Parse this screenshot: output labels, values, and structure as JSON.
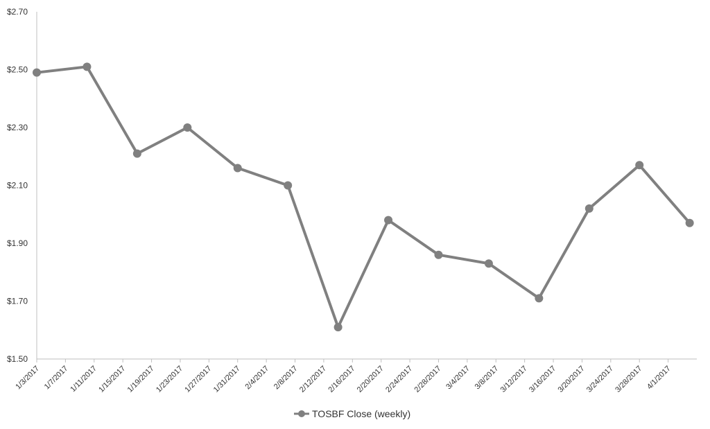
{
  "chart_data": {
    "type": "line",
    "x_tick_labels": [
      "1/3/2017",
      "1/7/2017",
      "1/11/2017",
      "1/15/2017",
      "1/19/2017",
      "1/23/2017",
      "1/27/2017",
      "1/31/2017",
      "2/4/2017",
      "2/8/2017",
      "2/12/2017",
      "2/16/2017",
      "2/20/2017",
      "2/24/2017",
      "2/28/2017",
      "3/4/2017",
      "3/8/2017",
      "3/12/2017",
      "3/16/2017",
      "3/20/2017",
      "3/24/2017",
      "3/28/2017",
      "4/1/2017"
    ],
    "x_range": [
      "1/3/2017",
      "4/5/2017"
    ],
    "y_ticks": [
      1.5,
      1.7,
      1.9,
      2.1,
      2.3,
      2.5,
      2.7
    ],
    "y_tick_labels": [
      "$1.50",
      "$1.70",
      "$1.90",
      "$2.10",
      "$2.30",
      "$2.50",
      "$2.70"
    ],
    "ylim": [
      1.5,
      2.7
    ],
    "grid": false,
    "legend_position": "bottom",
    "series": [
      {
        "name": "TOSBF Close (weekly)",
        "color": "#808080",
        "points": [
          {
            "x": "1/3/2017",
            "y": 2.49
          },
          {
            "x": "1/10/2017",
            "y": 2.51
          },
          {
            "x": "1/17/2017",
            "y": 2.21
          },
          {
            "x": "1/24/2017",
            "y": 2.3
          },
          {
            "x": "1/31/2017",
            "y": 2.16
          },
          {
            "x": "2/7/2017",
            "y": 2.1
          },
          {
            "x": "2/14/2017",
            "y": 1.61
          },
          {
            "x": "2/21/2017",
            "y": 1.98
          },
          {
            "x": "2/28/2017",
            "y": 1.86
          },
          {
            "x": "3/7/2017",
            "y": 1.83
          },
          {
            "x": "3/14/2017",
            "y": 1.71
          },
          {
            "x": "3/21/2017",
            "y": 2.02
          },
          {
            "x": "3/28/2017",
            "y": 2.17
          },
          {
            "x": "4/4/2017",
            "y": 1.97
          }
        ]
      }
    ]
  }
}
